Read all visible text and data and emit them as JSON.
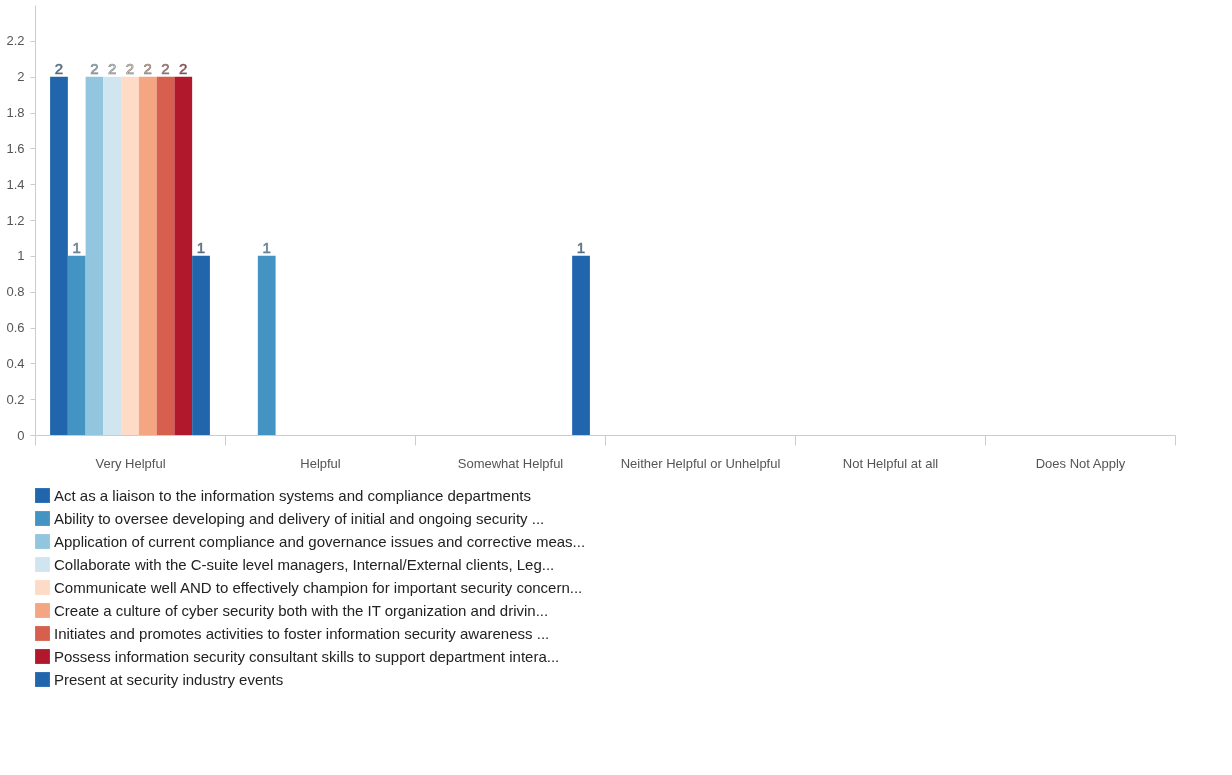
{
  "chart_data": {
    "type": "bar",
    "categories": [
      "Very Helpful",
      "Helpful",
      "Somewhat Helpful",
      "Neither Helpful or Unhelpful",
      "Not Helpful at all",
      "Does Not Apply"
    ],
    "series": [
      {
        "name": "Act as a liaison to the information systems and compliance departments",
        "color": "#2166ac",
        "values": [
          2,
          0,
          0,
          0,
          0,
          0
        ],
        "value_labels": [
          "2",
          null,
          null,
          null,
          null,
          null
        ]
      },
      {
        "name": "Ability to oversee developing and delivery of initial and ongoing security ...",
        "color": "#4393c3",
        "values": [
          1,
          1,
          0,
          0,
          0,
          0
        ],
        "value_labels": [
          "1",
          "1",
          null,
          null,
          null,
          null
        ]
      },
      {
        "name": "Application of current compliance and governance issues and corrective meas...",
        "color": "#92c5de",
        "values": [
          2,
          0,
          0,
          0,
          0,
          0
        ],
        "value_labels": [
          "2",
          null,
          null,
          null,
          null,
          null
        ]
      },
      {
        "name": "Collaborate with the C-suite level managers, Internal/External clients, Leg...",
        "color": "#d1e5f0",
        "values": [
          2,
          0,
          0,
          0,
          0,
          0
        ],
        "value_labels": [
          "2",
          null,
          null,
          null,
          null,
          null
        ]
      },
      {
        "name": "Communicate well AND to effectively champion for important security concern...",
        "color": "#fddbc7",
        "values": [
          2,
          0,
          0,
          0,
          0,
          0
        ],
        "value_labels": [
          "2",
          null,
          null,
          null,
          null,
          null
        ]
      },
      {
        "name": "Create a culture of cyber security both with the IT organization and drivin...",
        "color": "#f4a582",
        "values": [
          2,
          0,
          0,
          0,
          0,
          0
        ],
        "value_labels": [
          "2",
          null,
          null,
          null,
          null,
          null
        ]
      },
      {
        "name": "Initiates and promotes activities to foster information security awareness ...",
        "color": "#d6604d",
        "values": [
          2,
          0,
          0,
          0,
          0,
          0
        ],
        "value_labels": [
          "2",
          null,
          null,
          null,
          null,
          null
        ]
      },
      {
        "name": "Possess information security consultant skills to support department intera...",
        "color": "#b2182b",
        "values": [
          2,
          0,
          0,
          0,
          0,
          0
        ],
        "value_labels": [
          "2",
          null,
          null,
          null,
          null,
          null
        ]
      },
      {
        "name": "Present at security industry events",
        "color": "#2166ac",
        "values": [
          1,
          0,
          1,
          0,
          0,
          0
        ],
        "value_labels": [
          "1",
          null,
          "1",
          null,
          null,
          null
        ]
      }
    ],
    "ylim": [
      0,
      2.4
    ],
    "yticks": [
      0,
      0.2,
      0.4,
      0.6,
      0.8,
      1,
      1.2,
      1.4,
      1.6,
      1.8,
      2,
      2.2
    ],
    "grid": false,
    "legend": "bottom"
  }
}
